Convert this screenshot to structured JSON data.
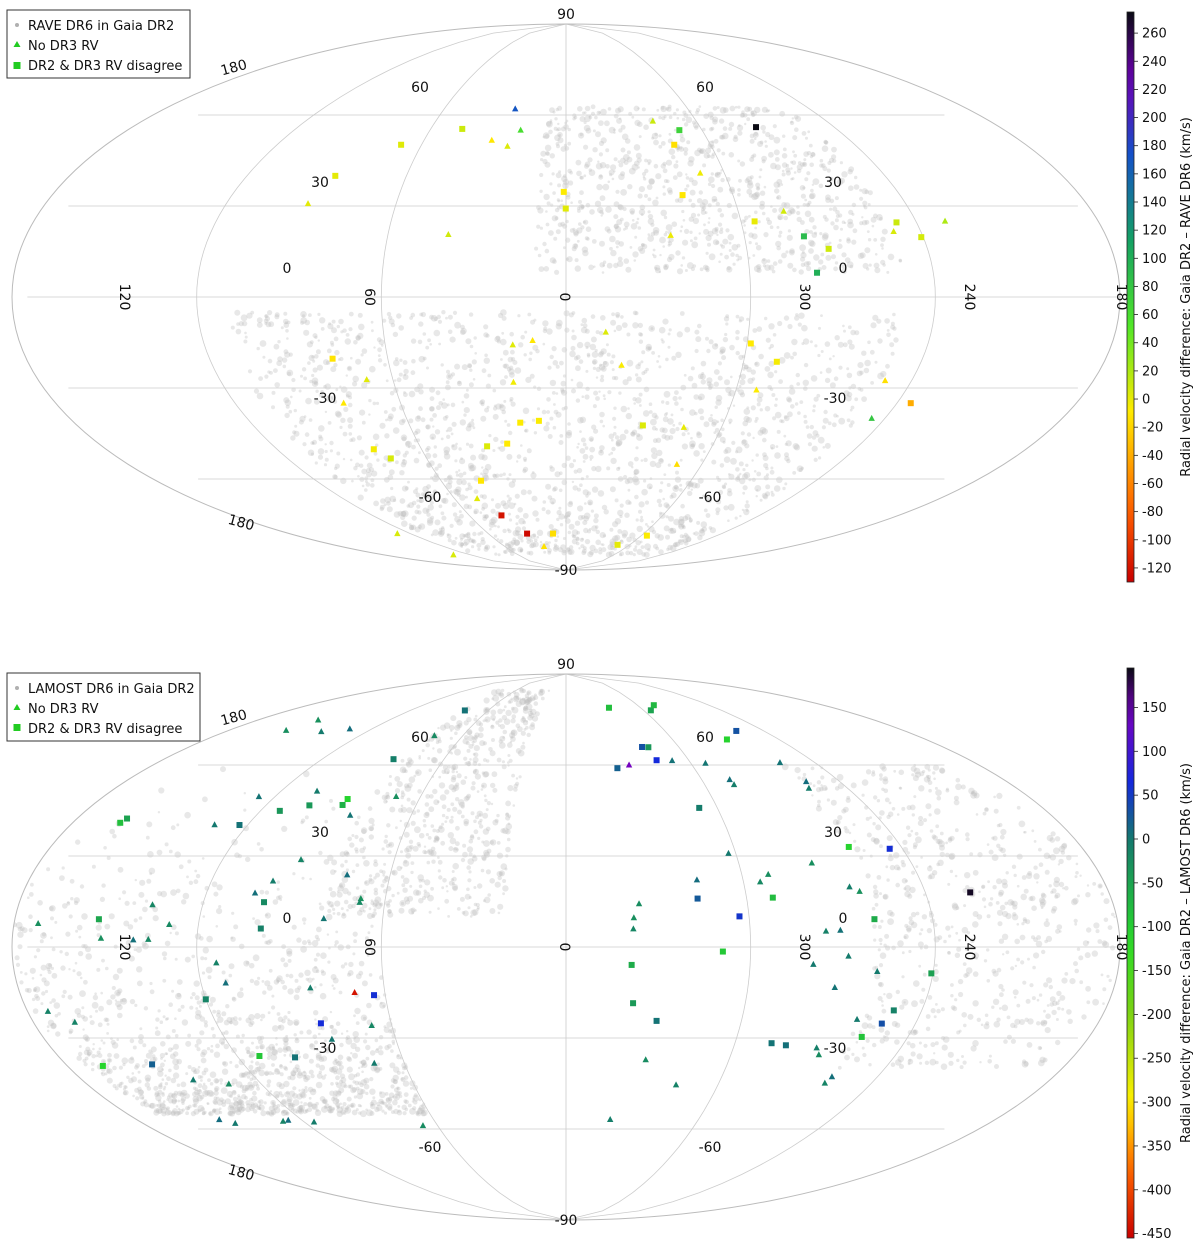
{
  "chart_data": [
    {
      "type": "scatter",
      "projection": "aitoff-like all-sky",
      "legend": {
        "placement": "top-left",
        "entries": [
          {
            "label": "RAVE DR6 in Gaia DR2",
            "marker": "dot",
            "color": "#b0b0b0"
          },
          {
            "label": "No DR3 RV",
            "marker": "triangle",
            "color": "#22cc22"
          },
          {
            "label": "DR2 & DR3 RV disagree",
            "marker": "square",
            "color": "#22cc22"
          }
        ]
      },
      "colorbar": {
        "label": "Radial velocity difference: Gaia DR2 – RAVE DR6 (km/s)",
        "vmin": -130,
        "vmax": 275,
        "ticks": [
          "260",
          "240",
          "220",
          "200",
          "180",
          "160",
          "140",
          "120",
          "100",
          "80",
          "60",
          "40",
          "20",
          "0",
          "-20",
          "-40",
          "-60",
          "-80",
          "-100",
          "-120"
        ],
        "tick_values": [
          260,
          240,
          220,
          200,
          180,
          160,
          140,
          120,
          100,
          80,
          60,
          40,
          20,
          0,
          -20,
          -40,
          -60,
          -80,
          -100,
          -120
        ]
      },
      "lat_labels_top": [
        "90",
        "60",
        "60",
        "30",
        "30"
      ],
      "lat_labels_bottom": [
        "-30",
        "-30",
        "-60",
        "-60",
        "-90"
      ],
      "lon_labels": [
        "120",
        "0",
        "60",
        "0",
        "300",
        "0",
        "240",
        "180"
      ],
      "edge_labels": [
        "180",
        "180"
      ],
      "coverage": "southern sky band and northern cap patches",
      "triangles": [
        {
          "lon": 25,
          "lat": 62,
          "v": 170
        },
        {
          "lon": 20,
          "lat": 55,
          "v": 60
        },
        {
          "lon": 320,
          "lat": 58,
          "v": 10
        },
        {
          "lon": 230,
          "lat": 25,
          "v": 20
        },
        {
          "lon": 130,
          "lat": -78,
          "v": 5
        },
        {
          "lon": 140,
          "lat": -85,
          "v": 5
        },
        {
          "lon": 245,
          "lat": -40,
          "v": 80
        }
      ],
      "squares": [
        {
          "lon": 275,
          "lat": 56,
          "v": 275
        },
        {
          "lon": 310,
          "lat": 55,
          "v": 70
        },
        {
          "lon": 280,
          "lat": 20,
          "v": 90
        },
        {
          "lon": 278,
          "lat": 8,
          "v": 100
        },
        {
          "lon": 40,
          "lat": -72,
          "v": -120
        },
        {
          "lon": 30,
          "lat": -78,
          "v": -125
        },
        {
          "lon": 235,
          "lat": -35,
          "v": -40
        },
        {
          "lon": 10,
          "lat": -78,
          "v": -15
        }
      ],
      "yellow_points_count": 45
    },
    {
      "type": "scatter",
      "projection": "aitoff-like all-sky",
      "legend": {
        "placement": "top-left",
        "entries": [
          {
            "label": "LAMOST DR6 in Gaia DR2",
            "marker": "dot",
            "color": "#b0b0b0"
          },
          {
            "label": "No DR3 RV",
            "marker": "triangle",
            "color": "#22cc22"
          },
          {
            "label": "DR2 & DR3 RV disagree",
            "marker": "square",
            "color": "#22cc22"
          }
        ]
      },
      "colorbar": {
        "label": "Radial velocity difference: Gaia DR2 – LAMOST DR6 (km/s)",
        "vmin": -455,
        "vmax": 195,
        "ticks": [
          "150",
          "100",
          "50",
          "0",
          "-50",
          "-100",
          "-150",
          "-200",
          "-250",
          "-300",
          "-350",
          "-400",
          "-450"
        ],
        "tick_values": [
          150,
          100,
          50,
          0,
          -50,
          -100,
          -150,
          -200,
          -250,
          -300,
          -350,
          -400,
          -450
        ]
      },
      "lat_labels_top": [
        "90",
        "60",
        "60",
        "30",
        "30"
      ],
      "lat_labels_bottom": [
        "-30",
        "-30",
        "-60",
        "-60",
        "-90"
      ],
      "lon_labels": [
        "120",
        "0",
        "60",
        "0",
        "300",
        "0",
        "240",
        "180"
      ],
      "edge_labels": [
        "180",
        "180"
      ],
      "coverage": "northern galactic cap and anticenter band",
      "triangles_count": 70,
      "squares_count": 45,
      "special_points": [
        {
          "marker": "triangle",
          "lon": 330,
          "lat": 60,
          "v": 140
        },
        {
          "marker": "triangle",
          "lon": 70,
          "lat": -15,
          "v": -440
        },
        {
          "marker": "square",
          "lon": 225,
          "lat": 18,
          "v": 190
        }
      ]
    }
  ]
}
